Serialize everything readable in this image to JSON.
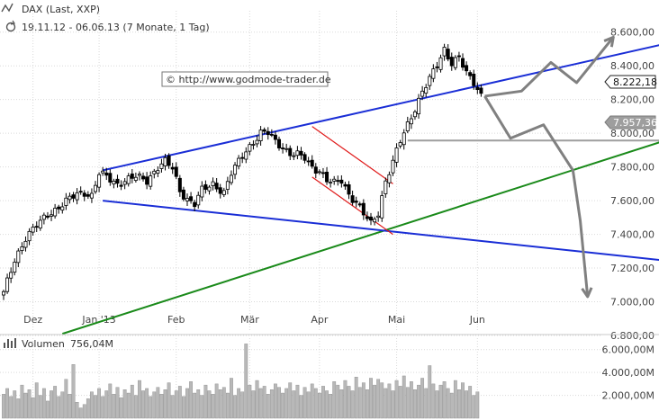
{
  "header": {
    "title": "DAX (Last, XXP)",
    "range": "19.11.12 - 06.06.13 (7 Monate, 1 Tag)"
  },
  "watermark": "© http://www.godmode-trader.de",
  "volume": {
    "label": "Volumen",
    "value": "756,04M",
    "ticks": [
      {
        "v": 6000,
        "label": "6.000,00M"
      },
      {
        "v": 4000,
        "label": "4.000,00M"
      },
      {
        "v": 2000,
        "label": "2.000,00M"
      }
    ],
    "ymax": 7000
  },
  "markers": {
    "current": "8.222,18",
    "support": "7.957,36"
  },
  "colors": {
    "bg": "#ffffff",
    "grid": "#d9d9d9",
    "candle": "#000000",
    "trend_blue": "#1a2ed6",
    "trend_green": "#1a8a1a",
    "channel_red": "#e01b1b",
    "projection": "#808080",
    "support_line": "#9e9e9e",
    "volume_bar": "#b8b8b8"
  },
  "chart_data": {
    "type": "candlestick",
    "title": "DAX (Last, XXP)",
    "subtitle": "19.11.12 - 06.06.13 (7 Monate, 1 Tag)",
    "ylim": [
      6800,
      8700
    ],
    "yticks": [
      {
        "v": 8600,
        "label": "8.600,00"
      },
      {
        "v": 8400,
        "label": "8.400,00"
      },
      {
        "v": 8200,
        "label": "8.200,00"
      },
      {
        "v": 8000,
        "label": "8.000,00"
      },
      {
        "v": 7800,
        "label": "7.800,00"
      },
      {
        "v": 7600,
        "label": "7.600,00"
      },
      {
        "v": 7400,
        "label": "7.400,00"
      },
      {
        "v": 7200,
        "label": "7.200,00"
      },
      {
        "v": 7000,
        "label": "7.000,00"
      },
      {
        "v": 6800,
        "label": "6.800,00"
      }
    ],
    "months": [
      {
        "label": "Dez",
        "i": 8
      },
      {
        "label": "Jan '13",
        "i": 26
      },
      {
        "label": "Feb",
        "i": 47
      },
      {
        "label": "Mär",
        "i": 67
      },
      {
        "label": "Apr",
        "i": 86
      },
      {
        "label": "Mai",
        "i": 107
      },
      {
        "label": "Jun",
        "i": 129
      }
    ],
    "anchors": [
      [
        0,
        7050
      ],
      [
        3,
        7250
      ],
      [
        6,
        7380
      ],
      [
        9,
        7450
      ],
      [
        12,
        7520
      ],
      [
        15,
        7560
      ],
      [
        18,
        7610
      ],
      [
        20,
        7640
      ],
      [
        22,
        7650
      ],
      [
        24,
        7630
      ],
      [
        26,
        7760
      ],
      [
        28,
        7740
      ],
      [
        31,
        7700
      ],
      [
        33,
        7720
      ],
      [
        36,
        7740
      ],
      [
        39,
        7720
      ],
      [
        42,
        7800
      ],
      [
        44,
        7830
      ],
      [
        46,
        7790
      ],
      [
        48,
        7660
      ],
      [
        50,
        7610
      ],
      [
        52,
        7580
      ],
      [
        54,
        7660
      ],
      [
        57,
        7700
      ],
      [
        60,
        7650
      ],
      [
        62,
        7760
      ],
      [
        64,
        7830
      ],
      [
        66,
        7900
      ],
      [
        68,
        7950
      ],
      [
        70,
        8000
      ],
      [
        72,
        8000
      ],
      [
        74,
        7950
      ],
      [
        76,
        7920
      ],
      [
        78,
        7880
      ],
      [
        80,
        7870
      ],
      [
        82,
        7850
      ],
      [
        84,
        7800
      ],
      [
        86,
        7780
      ],
      [
        88,
        7720
      ],
      [
        90,
        7700
      ],
      [
        92,
        7720
      ],
      [
        94,
        7640
      ],
      [
        96,
        7590
      ],
      [
        98,
        7520
      ],
      [
        100,
        7460
      ],
      [
        102,
        7530
      ],
      [
        104,
        7720
      ],
      [
        106,
        7830
      ],
      [
        108,
        7950
      ],
      [
        110,
        8050
      ],
      [
        112,
        8150
      ],
      [
        114,
        8250
      ],
      [
        116,
        8320
      ],
      [
        118,
        8400
      ],
      [
        120,
        8500
      ],
      [
        122,
        8420
      ],
      [
        124,
        8450
      ],
      [
        126,
        8350
      ],
      [
        128,
        8300
      ],
      [
        130,
        8230
      ]
    ],
    "volume_values": [
      2100,
      2600,
      1900,
      2400,
      1700,
      2900,
      2200,
      2500,
      1800,
      3100,
      2000,
      2600,
      1500,
      2400,
      2800,
      1900,
      2300,
      3400,
      2100,
      4700,
      1400,
      900,
      1200,
      1700,
      2300,
      2000,
      2600,
      1900,
      2400,
      3000,
      2100,
      2700,
      1800,
      2500,
      2200,
      2900,
      2000,
      3300,
      2400,
      2600,
      1900,
      2300,
      2700,
      2100,
      2500,
      3100,
      2000,
      2400,
      2800,
      1900,
      2600,
      3200,
      2200,
      2500,
      2000,
      2900,
      2400,
      2100,
      3000,
      2500,
      2700,
      2200,
      3500,
      2000,
      2600,
      2300,
      6500,
      2900,
      2400,
      3300,
      2600,
      2800,
      2100,
      2500,
      3000,
      2700,
      2200,
      2600,
      3100,
      2400,
      2900,
      2000,
      2700,
      2300,
      3000,
      2600,
      2200,
      2800,
      2400,
      2100,
      3200,
      2900,
      2500,
      3300,
      2800,
      2400,
      3600,
      2700,
      3100,
      2500,
      3500,
      2900,
      3400,
      3100,
      2600,
      3000,
      2400,
      3300,
      2800,
      3700,
      2700,
      3200,
      2500,
      2900,
      3500,
      2600,
      4600,
      3000,
      2400,
      2900,
      3200,
      2600,
      2200,
      3300,
      2500,
      3100,
      2400,
      2800,
      2000,
      2300
    ],
    "lines": {
      "blue_upper": {
        "from": [
          27,
          7780
        ],
        "to": [
          182,
          8540
        ]
      },
      "blue_lower": {
        "from": [
          27,
          7600
        ],
        "to": [
          182,
          7240
        ]
      },
      "green": {
        "from": [
          16,
          6810
        ],
        "to": [
          182,
          7970
        ]
      },
      "red_upper": {
        "from": [
          84,
          8040
        ],
        "to": [
          106,
          7700
        ]
      },
      "red_lower": {
        "from": [
          84,
          7740
        ],
        "to": [
          106,
          7400
        ]
      },
      "support": {
        "from": [
          110,
          7957
        ],
        "to": [
          182,
          7957
        ]
      },
      "arrow_up": [
        [
          131,
          8220
        ],
        [
          141,
          8250
        ],
        [
          149,
          8420
        ],
        [
          156,
          8300
        ],
        [
          166,
          8570
        ]
      ],
      "arrow_down": [
        [
          131,
          8220
        ],
        [
          138,
          7970
        ],
        [
          147,
          8050
        ],
        [
          155,
          7780
        ],
        [
          157,
          7480
        ],
        [
          159,
          7030
        ]
      ]
    }
  }
}
